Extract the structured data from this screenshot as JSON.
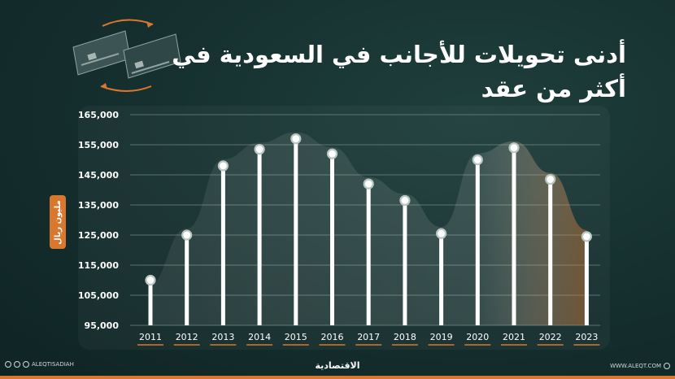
{
  "title": "أدنى تحويلات للأجانب في السعودية في أكثر من عقد",
  "brand": "الاقتصادية",
  "social_handle": "ALEQTISADIAH",
  "website": "WWW.ALEQT.COM",
  "colors": {
    "accent": "#d9772e",
    "bar": "#ffffff",
    "grid": "#6f8784",
    "background": "#163130"
  },
  "icons": [
    "money-transfer-cards-icon",
    "circular-arrows-icon",
    "instagram-icon",
    "facebook-icon",
    "x-icon",
    "globe-icon"
  ],
  "chart_data": {
    "type": "bar",
    "title": "أدنى تحويلات للأجانب في السعودية في أكثر من عقد",
    "ylabel": "مليون ريال",
    "xlabel": "",
    "categories": [
      "2011",
      "2012",
      "2013",
      "2014",
      "2015",
      "2016",
      "2017",
      "2018",
      "2019",
      "2020",
      "2021",
      "2022",
      "2023"
    ],
    "values": [
      110000,
      125000,
      148000,
      153500,
      157000,
      152000,
      142000,
      136500,
      125500,
      150000,
      154000,
      143500,
      124500
    ],
    "ylim": [
      95000,
      165000
    ],
    "yticks": [
      "95,000",
      "105,000",
      "115,000",
      "125,000",
      "135,000",
      "145,000",
      "155,000",
      "165,000"
    ],
    "ytick_values": [
      95000,
      105000,
      115000,
      125000,
      135000,
      145000,
      155000,
      165000
    ],
    "grid": true,
    "legend": "none"
  }
}
